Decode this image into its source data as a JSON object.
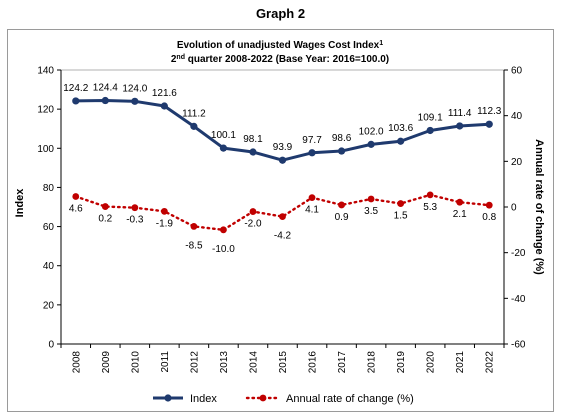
{
  "heading": "Graph 2",
  "chart_data": {
    "type": "line",
    "title": "Evolution of unadjusted Wages Cost Index",
    "title_superscript": "1",
    "subtitle_prefix": "2",
    "subtitle_superscript": "nd",
    "subtitle_rest": " quarter 2008-2022 (Base Year: 2016=100.0)",
    "ylabel": "Index",
    "y2label": "Annual rate of change (%)",
    "ylim": [
      0,
      140
    ],
    "yticks": [
      0,
      20,
      40,
      60,
      80,
      100,
      120,
      140
    ],
    "y2lim": [
      -60,
      60
    ],
    "y2ticks": [
      -60,
      -40,
      -20,
      0,
      20,
      40,
      60
    ],
    "categories": [
      "2008",
      "2009",
      "2010",
      "2011",
      "2012",
      "2013",
      "2014",
      "2015",
      "2016",
      "2017",
      "2018",
      "2019",
      "2020",
      "2021",
      "2022"
    ],
    "series": [
      {
        "name": "Index",
        "axis": "left",
        "color": "#1f3a6e",
        "style": "solid",
        "values": [
          124.2,
          124.4,
          124.0,
          121.6,
          111.2,
          100.1,
          98.1,
          93.9,
          97.7,
          98.6,
          102.0,
          103.6,
          109.1,
          111.4,
          112.3
        ],
        "labels": [
          "124.2",
          "124.4",
          "124.0",
          "121.6",
          "111.2",
          "100.1",
          "98.1",
          "93.9",
          "97.7",
          "98.6",
          "102.0",
          "103.6",
          "109.1",
          "111.4",
          "112.3"
        ]
      },
      {
        "name": "Annual rate of change (%)",
        "axis": "right",
        "color": "#c00000",
        "style": "dotted",
        "values": [
          4.6,
          0.2,
          -0.3,
          -1.9,
          -8.5,
          -10.0,
          -2.0,
          -4.2,
          4.1,
          0.9,
          3.5,
          1.5,
          5.3,
          2.1,
          0.8
        ],
        "labels": [
          "4.6",
          "0.2",
          "-0.3",
          "-1.9",
          "-8.5",
          "-10.0",
          "-2.0",
          "-4.2",
          "4.1",
          "0.9",
          "3.5",
          "1.5",
          "5.3",
          "2.1",
          "0.8"
        ]
      }
    ],
    "grid": false,
    "legend": "bottom"
  }
}
